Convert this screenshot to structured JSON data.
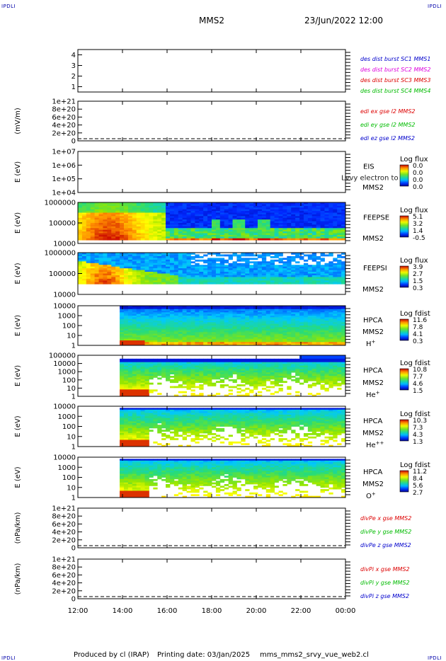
{
  "header": {
    "corner_label": "IPDLI",
    "spacecraft": "MMS2",
    "datetime": "23/Jun/2022 12:00"
  },
  "footer": {
    "produced_by": "Produced by cl (IRAP)",
    "printing_date": "Printing date: 03/Jan/2025",
    "filename": "mms_mms2_srvy_vue_web2.cl"
  },
  "chart_data": {
    "type": "spectrogram-stack",
    "x_ticks": [
      "12:00",
      "14:00",
      "16:00",
      "18:00",
      "20:00",
      "22:00",
      "00:00"
    ],
    "x_range_hours": [
      12,
      24
    ],
    "panels": [
      {
        "id": "sc-flags",
        "kind": "lines",
        "ylabel": "",
        "y_ticks": [
          "1",
          "2",
          "3",
          "4"
        ],
        "legend": [
          {
            "text": "des dist burst SC1 MMS1",
            "color": "#0000cc"
          },
          {
            "text": "des dist burst SC2 MMS2",
            "color": "#dd00dd"
          },
          {
            "text": "des dist burst SC3 MMS3",
            "color": "#dd0000"
          },
          {
            "text": "des dist burst SC4 MMS4",
            "color": "#00bb00"
          }
        ]
      },
      {
        "id": "edi-e",
        "kind": "lines",
        "ylabel": "(mV/m)",
        "y_ticks": [
          "0",
          "2e+20",
          "4e+20",
          "6e+20",
          "8e+20",
          "1e+21"
        ],
        "legend": [
          {
            "text": "edi ex gse l2 MMS2",
            "color": "#dd0000"
          },
          {
            "text": "edi ey gse l2 MMS2",
            "color": "#00bb00"
          },
          {
            "text": "edi ez gse l2 MMS2",
            "color": "#0000cc"
          }
        ]
      },
      {
        "id": "eis",
        "kind": "spectrogram",
        "ylabel": "E (eV)",
        "y_ticks": [
          "1e+04",
          "1e+05",
          "1e+06",
          "1e+07"
        ],
        "instrument": "EIS",
        "sc": "MMS2",
        "species": "",
        "overlay_text": "Lvvy electron to",
        "colorbar_title": "Log flux",
        "colorbar_values": [
          "0.0",
          "0.0",
          "0.0",
          "0.0"
        ],
        "profile": "empty",
        "data_start_hour": 12
      },
      {
        "id": "feepse",
        "kind": "spectrogram",
        "ylabel": "E (eV)",
        "y_ticks": [
          "10000",
          "100000",
          "1000000"
        ],
        "instrument": "FEEPSE",
        "sc": "MMS2",
        "species": "",
        "colorbar_title": "Log flux",
        "colorbar_values": [
          "5.1",
          "3.2",
          "1.4",
          "-0.5"
        ],
        "profile": "feeps_electron",
        "data_start_hour": 12
      },
      {
        "id": "feepsi",
        "kind": "spectrogram",
        "ylabel": "E (eV)",
        "y_ticks": [
          "10000",
          "100000",
          "1000000"
        ],
        "instrument": "FEEPSI",
        "sc": "MMS2",
        "species": "",
        "colorbar_title": "Log flux",
        "colorbar_values": [
          "3.9",
          "2.7",
          "1.5",
          "0.3"
        ],
        "profile": "feeps_ion",
        "data_start_hour": 12
      },
      {
        "id": "hpca-h",
        "kind": "spectrogram",
        "ylabel": "E (eV)",
        "y_ticks": [
          "1",
          "10",
          "100",
          "1000",
          "10000"
        ],
        "instrument": "HPCA",
        "sc": "MMS2",
        "species": "H",
        "species_sup": "+",
        "colorbar_title": "Log fdist",
        "colorbar_values": [
          "11.6",
          "7.8",
          "4.1",
          "0.3"
        ],
        "profile": "hpca_h",
        "data_start_hour": 13.85
      },
      {
        "id": "hpca-he",
        "kind": "spectrogram",
        "ylabel": "E (eV)",
        "y_ticks": [
          "1",
          "10",
          "100",
          "1000",
          "10000",
          "100000"
        ],
        "instrument": "HPCA",
        "sc": "MMS2",
        "species": "He",
        "species_sup": "+",
        "colorbar_title": "Log fdist",
        "colorbar_values": [
          "10.8",
          "7.7",
          "4.6",
          "1.5"
        ],
        "profile": "hpca_he",
        "data_start_hour": 13.85
      },
      {
        "id": "hpca-hepp",
        "kind": "spectrogram",
        "ylabel": "E (eV)",
        "y_ticks": [
          "1",
          "10",
          "100",
          "1000",
          "10000"
        ],
        "instrument": "HPCA",
        "sc": "MMS2",
        "species": "He",
        "species_sup": "++",
        "colorbar_title": "Log fdist",
        "colorbar_values": [
          "10.3",
          "7.3",
          "4.3",
          "1.3"
        ],
        "profile": "hpca_hepp",
        "data_start_hour": 13.85
      },
      {
        "id": "hpca-o",
        "kind": "spectrogram",
        "ylabel": "E (eV)",
        "y_ticks": [
          "1",
          "10",
          "100",
          "1000",
          "10000"
        ],
        "instrument": "HPCA",
        "sc": "MMS2",
        "species": "O",
        "species_sup": "+",
        "colorbar_title": "Log fdist",
        "colorbar_values": [
          "11.2",
          "8.4",
          "5.6",
          "2.7"
        ],
        "profile": "hpca_o",
        "data_start_hour": 13.85
      },
      {
        "id": "divpe",
        "kind": "lines",
        "ylabel": "(nPa/km)",
        "y_ticks": [
          "0",
          "2e+20",
          "4e+20",
          "6e+20",
          "8e+20",
          "1e+21"
        ],
        "legend": [
          {
            "text": "divPe x gse MMS2",
            "color": "#dd0000"
          },
          {
            "text": "divPe y gse MMS2",
            "color": "#00bb00"
          },
          {
            "text": "divPe z gse MMS2",
            "color": "#0000cc"
          }
        ]
      },
      {
        "id": "divpi",
        "kind": "lines",
        "ylabel": "(nPa/km)",
        "y_ticks": [
          "0",
          "2e+20",
          "4e+20",
          "6e+20",
          "8e+20",
          "1e+21"
        ],
        "legend": [
          {
            "text": "divPi x gse MMS2",
            "color": "#dd0000"
          },
          {
            "text": "divPi y gse MMS2",
            "color": "#00bb00"
          },
          {
            "text": "divPi z gse MMS2",
            "color": "#0000cc"
          }
        ]
      }
    ]
  }
}
